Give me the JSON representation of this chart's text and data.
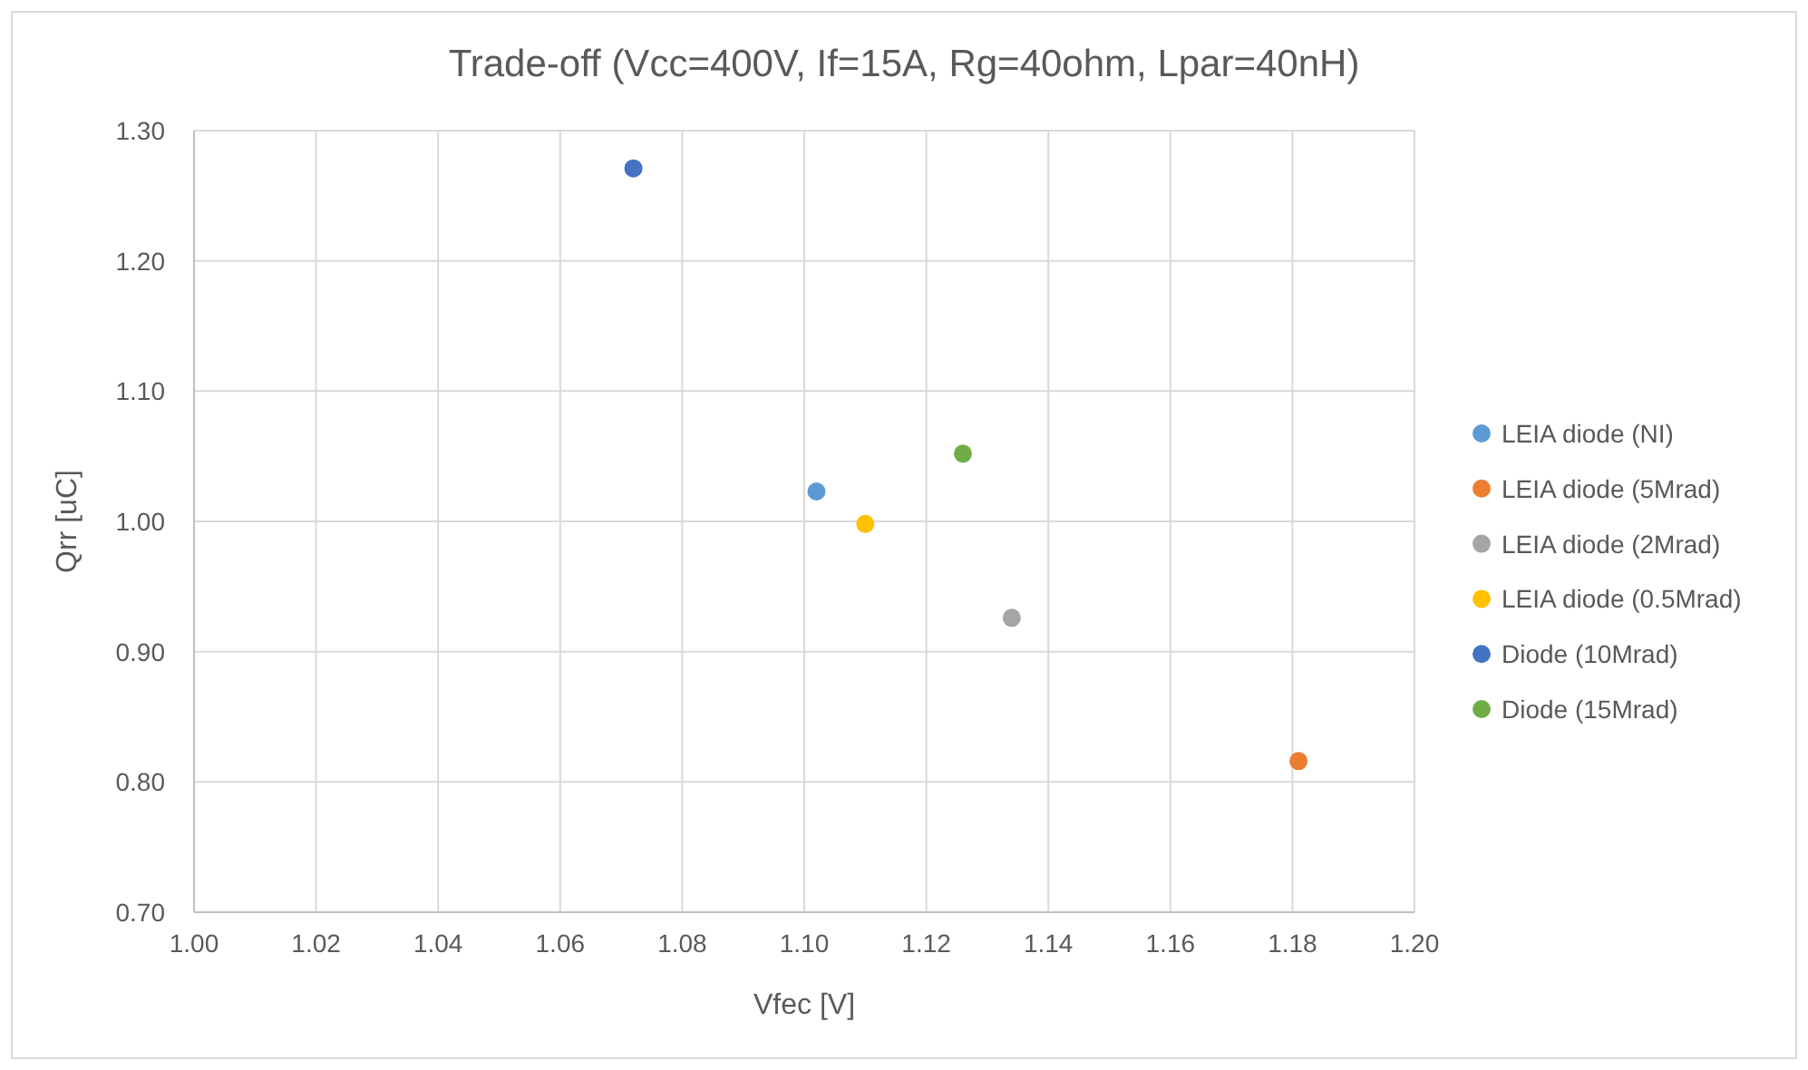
{
  "chart_data": {
    "type": "scatter",
    "title": "Trade-off (Vcc=400V, If=15A, Rg=40ohm, Lpar=40nH)",
    "xlabel": "Vfec [V]",
    "ylabel": "Qrr [uC]",
    "series": [
      {
        "name": "LEIA diode (NI)",
        "color": "#5b9bd5",
        "x": [
          1.102
        ],
        "values": [
          1.023
        ]
      },
      {
        "name": "LEIA diode (5Mrad)",
        "color": "#ed7d31",
        "x": [
          1.181
        ],
        "values": [
          0.816
        ]
      },
      {
        "name": "LEIA diode (2Mrad)",
        "color": "#a5a5a5",
        "x": [
          1.134
        ],
        "values": [
          0.926
        ]
      },
      {
        "name": "LEIA diode (0.5Mrad)",
        "color": "#ffc000",
        "x": [
          1.11
        ],
        "values": [
          0.998
        ]
      },
      {
        "name": "Diode (10Mrad)",
        "color": "#4472c4",
        "x": [
          1.072
        ],
        "values": [
          1.271
        ]
      },
      {
        "name": "Diode (15Mrad)",
        "color": "#70ad47",
        "x": [
          1.126
        ],
        "values": [
          1.052
        ]
      }
    ],
    "xlim": [
      1.0,
      1.2
    ],
    "xticks": [
      {
        "value": 1.0,
        "label": "1.00"
      },
      {
        "value": 1.02,
        "label": "1.02"
      },
      {
        "value": 1.04,
        "label": "1.04"
      },
      {
        "value": 1.06,
        "label": "1.06"
      },
      {
        "value": 1.08,
        "label": "1.08"
      },
      {
        "value": 1.1,
        "label": "1.10"
      },
      {
        "value": 1.12,
        "label": "1.12"
      },
      {
        "value": 1.14,
        "label": "1.14"
      },
      {
        "value": 1.16,
        "label": "1.16"
      },
      {
        "value": 1.18,
        "label": "1.18"
      },
      {
        "value": 1.2,
        "label": "1.20"
      }
    ],
    "ylim": [
      0.7,
      1.3
    ],
    "yticks": [
      {
        "value": 0.7,
        "label": "0.70"
      },
      {
        "value": 0.8,
        "label": "0.80"
      },
      {
        "value": 0.9,
        "label": "0.90"
      },
      {
        "value": 1.0,
        "label": "1.00"
      },
      {
        "value": 1.1,
        "label": "1.10"
      },
      {
        "value": 1.2,
        "label": "1.20"
      },
      {
        "value": 1.3,
        "label": "1.30"
      }
    ],
    "grid": true,
    "legend": "right",
    "marker": "circle"
  }
}
